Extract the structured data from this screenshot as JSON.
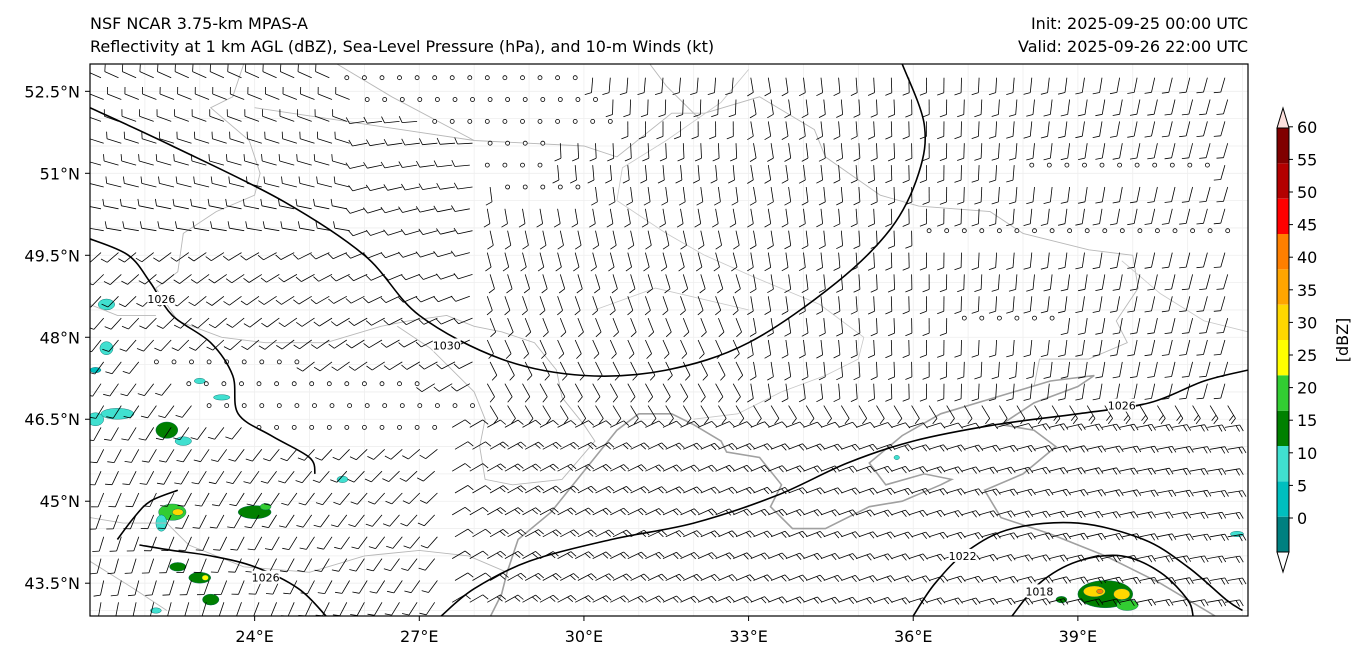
{
  "header": {
    "title_line1": "NSF NCAR 3.75-km MPAS-A",
    "title_line2": "Reflectivity at 1 km AGL (dBZ), Sea-Level Pressure (hPa), and 10-m Winds (kt)",
    "init": "Init: 2025-09-25 00:00 UTC",
    "valid": "Valid: 2025-09-26 22:00 UTC"
  },
  "map": {
    "lon_range": [
      21.0,
      42.1
    ],
    "lat_range": [
      42.9,
      53.0
    ],
    "lat_ticks": [
      {
        "value": 52.5,
        "label": "52.5°N"
      },
      {
        "value": 51.0,
        "label": "51°N"
      },
      {
        "value": 49.5,
        "label": "49.5°N"
      },
      {
        "value": 48.0,
        "label": "48°N"
      },
      {
        "value": 46.5,
        "label": "46.5°N"
      },
      {
        "value": 45.0,
        "label": "45°N"
      },
      {
        "value": 43.5,
        "label": "43.5°N"
      }
    ],
    "lon_ticks": [
      {
        "value": 24,
        "label": "24°E"
      },
      {
        "value": 27,
        "label": "27°E"
      },
      {
        "value": 30,
        "label": "30°E"
      },
      {
        "value": 33,
        "label": "33°E"
      },
      {
        "value": 36,
        "label": "36°E"
      },
      {
        "value": 39,
        "label": "39°E"
      }
    ],
    "isobars": [
      {
        "label": "1030",
        "label_at": [
          27.5,
          47.85
        ],
        "points": [
          [
            21.0,
            52.2
          ],
          [
            22.5,
            51.5
          ],
          [
            24.5,
            50.5
          ],
          [
            26.0,
            49.5
          ],
          [
            27.0,
            48.4
          ],
          [
            28.5,
            47.6
          ],
          [
            30.0,
            47.3
          ],
          [
            31.5,
            47.4
          ],
          [
            33.0,
            47.9
          ],
          [
            34.6,
            49.0
          ],
          [
            35.6,
            50.0
          ],
          [
            36.1,
            51.0
          ],
          [
            36.2,
            51.9
          ],
          [
            35.8,
            53.0
          ]
        ]
      },
      {
        "label": "1026",
        "label_at": [
          22.3,
          48.7
        ],
        "points": [
          [
            21.0,
            49.8
          ],
          [
            21.7,
            49.5
          ],
          [
            22.1,
            49.0
          ],
          [
            22.5,
            48.4
          ],
          [
            23.2,
            47.9
          ],
          [
            23.6,
            47.3
          ],
          [
            23.7,
            46.6
          ],
          [
            24.3,
            46.2
          ],
          [
            25.0,
            45.8
          ],
          [
            25.1,
            45.5
          ]
        ]
      },
      {
        "label": "1026",
        "label_at": [
          39.8,
          46.75
        ],
        "points": [
          [
            27.4,
            42.9
          ],
          [
            28.0,
            43.4
          ],
          [
            29.0,
            43.9
          ],
          [
            30.5,
            44.3
          ],
          [
            32.0,
            44.6
          ],
          [
            33.5,
            45.1
          ],
          [
            34.8,
            45.7
          ],
          [
            36.0,
            46.1
          ],
          [
            37.5,
            46.4
          ],
          [
            39.0,
            46.6
          ],
          [
            40.3,
            46.8
          ],
          [
            41.3,
            47.2
          ],
          [
            42.1,
            47.4
          ]
        ]
      },
      {
        "label": "1026",
        "label_at": [
          24.2,
          43.6
        ],
        "points": [
          [
            21.9,
            44.2
          ],
          [
            22.5,
            44.1
          ],
          [
            23.2,
            44.0
          ],
          [
            24.0,
            43.8
          ],
          [
            24.8,
            43.4
          ],
          [
            25.3,
            42.9
          ]
        ]
      },
      {
        "label": "1022",
        "label_at": [
          36.9,
          44.0
        ],
        "points": [
          [
            36.0,
            42.9
          ],
          [
            36.4,
            43.5
          ],
          [
            37.0,
            44.1
          ],
          [
            37.8,
            44.5
          ],
          [
            39.0,
            44.6
          ],
          [
            40.2,
            44.3
          ],
          [
            41.0,
            43.8
          ],
          [
            41.7,
            43.2
          ],
          [
            42.0,
            43.0
          ]
        ]
      },
      {
        "label": "1018",
        "label_at": [
          38.3,
          43.35
        ],
        "points": [
          [
            37.8,
            42.9
          ],
          [
            38.3,
            43.5
          ],
          [
            39.0,
            43.9
          ],
          [
            39.8,
            44.0
          ],
          [
            40.5,
            43.7
          ],
          [
            41.0,
            43.2
          ],
          [
            41.1,
            42.9
          ]
        ]
      },
      {
        "label": "",
        "label_at": [
          21.5,
          45.0
        ],
        "points": [
          [
            21.5,
            44.3
          ],
          [
            21.8,
            44.7
          ],
          [
            22.1,
            45.0
          ],
          [
            22.6,
            45.2
          ]
        ]
      }
    ],
    "coastlines": [
      [
        [
          28.3,
          42.9
        ],
        [
          28.5,
          43.3
        ],
        [
          28.6,
          43.7
        ],
        [
          28.8,
          44.3
        ],
        [
          29.4,
          44.8
        ],
        [
          29.8,
          45.3
        ],
        [
          30.2,
          45.8
        ],
        [
          30.6,
          46.3
        ],
        [
          31.0,
          46.6
        ],
        [
          31.6,
          46.6
        ],
        [
          32.0,
          46.4
        ],
        [
          32.5,
          46.1
        ],
        [
          32.6,
          45.9
        ],
        [
          33.2,
          45.8
        ],
        [
          33.6,
          45.3
        ],
        [
          33.4,
          44.9
        ],
        [
          33.8,
          44.5
        ],
        [
          34.4,
          44.5
        ],
        [
          35.2,
          44.9
        ],
        [
          35.8,
          45.0
        ],
        [
          36.5,
          45.3
        ],
        [
          36.7,
          45.4
        ],
        [
          36.2,
          45.5
        ],
        [
          35.5,
          45.3
        ],
        [
          35.2,
          45.7
        ],
        [
          35.8,
          46.2
        ],
        [
          36.5,
          46.6
        ],
        [
          37.5,
          46.9
        ],
        [
          38.5,
          47.2
        ],
        [
          39.3,
          47.3
        ],
        [
          39.0,
          47.1
        ],
        [
          38.2,
          46.8
        ],
        [
          37.6,
          46.4
        ],
        [
          38.2,
          46.3
        ],
        [
          38.6,
          46.0
        ],
        [
          38.0,
          45.5
        ],
        [
          37.3,
          45.2
        ],
        [
          37.6,
          44.7
        ],
        [
          38.5,
          44.4
        ],
        [
          39.5,
          44.0
        ],
        [
          40.5,
          43.5
        ],
        [
          41.5,
          42.9
        ]
      ]
    ],
    "borders": [
      [
        [
          23.8,
          53.0
        ],
        [
          23.6,
          52.4
        ],
        [
          23.2,
          52.2
        ],
        [
          23.9,
          51.6
        ],
        [
          24.1,
          51.0
        ],
        [
          24.0,
          50.6
        ],
        [
          23.3,
          50.3
        ],
        [
          22.7,
          49.9
        ],
        [
          22.6,
          49.2
        ],
        [
          22.2,
          48.9
        ],
        [
          22.6,
          48.3
        ],
        [
          23.4,
          48.0
        ],
        [
          24.2,
          47.9
        ],
        [
          25.3,
          47.9
        ],
        [
          26.3,
          48.2
        ],
        [
          26.8,
          48.3
        ],
        [
          27.5,
          48.4
        ],
        [
          28.0,
          48.2
        ],
        [
          28.5,
          48.1
        ],
        [
          29.1,
          47.9
        ],
        [
          29.5,
          47.4
        ],
        [
          29.6,
          46.9
        ],
        [
          30.0,
          46.4
        ],
        [
          30.2,
          46.1
        ],
        [
          29.6,
          45.4
        ],
        [
          28.7,
          45.3
        ],
        [
          28.2,
          45.4
        ],
        [
          28.1,
          46.0
        ],
        [
          28.2,
          46.5
        ],
        [
          28.0,
          47.0
        ],
        [
          27.2,
          47.8
        ],
        [
          26.6,
          48.2
        ]
      ],
      [
        [
          21.0,
          44.7
        ],
        [
          21.6,
          44.6
        ],
        [
          22.4,
          44.6
        ],
        [
          22.8,
          44.2
        ],
        [
          23.8,
          43.8
        ],
        [
          25.0,
          43.7
        ],
        [
          26.0,
          44.0
        ],
        [
          27.0,
          44.1
        ],
        [
          27.9,
          44.0
        ],
        [
          28.6,
          43.7
        ]
      ],
      [
        [
          21.0,
          43.9
        ],
        [
          21.8,
          43.4
        ],
        [
          22.4,
          43.0
        ]
      ],
      [
        [
          22.2,
          48.4
        ],
        [
          21.5,
          48.4
        ],
        [
          21.0,
          48.6
        ]
      ],
      [
        [
          24.0,
          52.2
        ],
        [
          26.0,
          51.9
        ],
        [
          28.0,
          51.6
        ],
        [
          30.0,
          51.5
        ],
        [
          30.6,
          51.3
        ],
        [
          31.6,
          52.1
        ],
        [
          32.2,
          52.1
        ],
        [
          33.2,
          52.4
        ],
        [
          34.2,
          51.8
        ],
        [
          34.4,
          51.3
        ],
        [
          35.4,
          50.6
        ],
        [
          36.1,
          50.4
        ],
        [
          37.4,
          50.3
        ],
        [
          38.0,
          49.9
        ],
        [
          39.2,
          49.6
        ],
        [
          40.0,
          49.5
        ],
        [
          40.1,
          48.9
        ],
        [
          39.7,
          48.3
        ],
        [
          39.9,
          47.9
        ],
        [
          39.2,
          47.6
        ],
        [
          38.3,
          47.6
        ],
        [
          38.2,
          47.1
        ]
      ],
      [
        [
          31.2,
          53.0
        ],
        [
          31.5,
          52.6
        ],
        [
          32.1,
          52.0
        ]
      ],
      [
        [
          25.5,
          53.0
        ],
        [
          26.5,
          52.4
        ],
        [
          28.0,
          51.6
        ]
      ]
    ],
    "rivers": [
      [
        [
          33.0,
          52.9
        ],
        [
          32.5,
          52.3
        ],
        [
          31.5,
          51.6
        ],
        [
          30.7,
          51.1
        ],
        [
          30.6,
          50.5
        ],
        [
          31.5,
          49.9
        ],
        [
          32.2,
          49.5
        ],
        [
          33.1,
          49.1
        ],
        [
          34.3,
          48.6
        ],
        [
          35.1,
          48.0
        ],
        [
          35.0,
          47.6
        ],
        [
          34.4,
          47.3
        ],
        [
          33.6,
          47.0
        ],
        [
          32.8,
          46.6
        ],
        [
          32.0,
          46.5
        ]
      ],
      [
        [
          39.8,
          49.4
        ],
        [
          40.5,
          48.8
        ],
        [
          41.3,
          48.3
        ],
        [
          42.1,
          48.1
        ]
      ],
      [
        [
          33.0,
          48.5
        ],
        [
          31.3,
          48.9
        ],
        [
          30.2,
          48.5
        ]
      ]
    ],
    "calm_rows": [
      {
        "lat": 52.6,
        "lon_from": 25.4,
        "lon_to": 30.0
      },
      {
        "lat": 52.2,
        "lon_from": 26.0,
        "lon_to": 30.4
      },
      {
        "lat": 51.8,
        "lon_from": 27.0,
        "lon_to": 30.6
      },
      {
        "lat": 51.4,
        "lon_from": 28.0,
        "lon_to": 29.4
      },
      {
        "lat": 51.0,
        "lon_from": 28.0,
        "lon_to": 29.4
      },
      {
        "lat": 50.6,
        "lon_from": 28.4,
        "lon_to": 30.0
      },
      {
        "lat": 47.6,
        "lon_from": 22.0,
        "lon_to": 25.0
      },
      {
        "lat": 47.2,
        "lon_from": 22.5,
        "lon_to": 27.0
      },
      {
        "lat": 46.8,
        "lon_from": 23.0,
        "lon_to": 28.0
      },
      {
        "lat": 46.4,
        "lon_from": 24.0,
        "lon_to": 27.4
      },
      {
        "lat": 49.8,
        "lon_from": 36.2,
        "lon_to": 41.8
      },
      {
        "lat": 51.0,
        "lon_from": 38.0,
        "lon_to": 41.6
      },
      {
        "lat": 48.4,
        "lon_from": 36.8,
        "lon_to": 38.6
      }
    ],
    "reflectivity_cells": [
      {
        "lon": 21.3,
        "lat": 48.6,
        "rx": 0.15,
        "ry": 0.1,
        "dbz": 10
      },
      {
        "lon": 21.3,
        "lat": 47.8,
        "rx": 0.12,
        "ry": 0.12,
        "dbz": 10
      },
      {
        "lon": 21.5,
        "lat": 46.6,
        "rx": 0.3,
        "ry": 0.1,
        "dbz": 10
      },
      {
        "lon": 21.1,
        "lat": 46.5,
        "rx": 0.15,
        "ry": 0.12,
        "dbz": 10
      },
      {
        "lon": 22.4,
        "lat": 46.3,
        "rx": 0.2,
        "ry": 0.15,
        "dbz": 15
      },
      {
        "lon": 22.7,
        "lat": 46.1,
        "rx": 0.15,
        "ry": 0.08,
        "dbz": 10
      },
      {
        "lon": 22.5,
        "lat": 44.8,
        "rx": 0.25,
        "ry": 0.15,
        "dbz": 20
      },
      {
        "lon": 22.6,
        "lat": 44.8,
        "rx": 0.1,
        "ry": 0.06,
        "dbz": 30
      },
      {
        "lon": 22.3,
        "lat": 44.6,
        "rx": 0.1,
        "ry": 0.15,
        "dbz": 10
      },
      {
        "lon": 24.0,
        "lat": 44.8,
        "rx": 0.3,
        "ry": 0.12,
        "dbz": 15
      },
      {
        "lon": 24.2,
        "lat": 44.9,
        "rx": 0.1,
        "ry": 0.06,
        "dbz": 20
      },
      {
        "lon": 22.6,
        "lat": 43.8,
        "rx": 0.15,
        "ry": 0.08,
        "dbz": 15
      },
      {
        "lon": 23.0,
        "lat": 43.6,
        "rx": 0.2,
        "ry": 0.1,
        "dbz": 15
      },
      {
        "lon": 23.1,
        "lat": 43.6,
        "rx": 0.06,
        "ry": 0.05,
        "dbz": 25
      },
      {
        "lon": 23.2,
        "lat": 43.2,
        "rx": 0.15,
        "ry": 0.1,
        "dbz": 15
      },
      {
        "lon": 22.2,
        "lat": 43.0,
        "rx": 0.1,
        "ry": 0.05,
        "dbz": 10
      },
      {
        "lon": 23.0,
        "lat": 47.2,
        "rx": 0.1,
        "ry": 0.05,
        "dbz": 10
      },
      {
        "lon": 23.4,
        "lat": 46.9,
        "rx": 0.15,
        "ry": 0.05,
        "dbz": 10
      },
      {
        "lon": 21.1,
        "lat": 47.4,
        "rx": 0.1,
        "ry": 0.05,
        "dbz": 5
      },
      {
        "lon": 25.6,
        "lat": 45.4,
        "rx": 0.1,
        "ry": 0.06,
        "dbz": 10
      },
      {
        "lon": 39.5,
        "lat": 43.3,
        "rx": 0.5,
        "ry": 0.25,
        "dbz": 15
      },
      {
        "lon": 39.3,
        "lat": 43.35,
        "rx": 0.2,
        "ry": 0.1,
        "dbz": 30
      },
      {
        "lon": 39.8,
        "lat": 43.3,
        "rx": 0.15,
        "ry": 0.1,
        "dbz": 30
      },
      {
        "lon": 39.4,
        "lat": 43.35,
        "rx": 0.06,
        "ry": 0.04,
        "dbz": 40
      },
      {
        "lon": 39.9,
        "lat": 43.1,
        "rx": 0.2,
        "ry": 0.1,
        "dbz": 20
      },
      {
        "lon": 38.7,
        "lat": 43.2,
        "rx": 0.1,
        "ry": 0.06,
        "dbz": 15
      },
      {
        "lon": 41.9,
        "lat": 44.4,
        "rx": 0.12,
        "ry": 0.05,
        "dbz": 10
      },
      {
        "lon": 35.7,
        "lat": 45.8,
        "rx": 0.05,
        "ry": 0.04,
        "dbz": 10
      }
    ]
  },
  "colorbar": {
    "label": "[dBZ]",
    "levels": [
      {
        "value": "0",
        "color": "#008080"
      },
      {
        "value": "5",
        "color": "#00bfbf"
      },
      {
        "value": "10",
        "color": "#40e0d0"
      },
      {
        "value": "15",
        "color": "#008000"
      },
      {
        "value": "20",
        "color": "#32cd32"
      },
      {
        "value": "25",
        "color": "#ffff00"
      },
      {
        "value": "30",
        "color": "#ffd700"
      },
      {
        "value": "35",
        "color": "#ffa500"
      },
      {
        "value": "40",
        "color": "#ff7f00"
      },
      {
        "value": "45",
        "color": "#ff0000"
      },
      {
        "value": "50",
        "color": "#b30000"
      },
      {
        "value": "55",
        "color": "#800000"
      },
      {
        "value": "60",
        "color": "#ff00ff"
      }
    ],
    "over_color": "#fde0dd"
  }
}
